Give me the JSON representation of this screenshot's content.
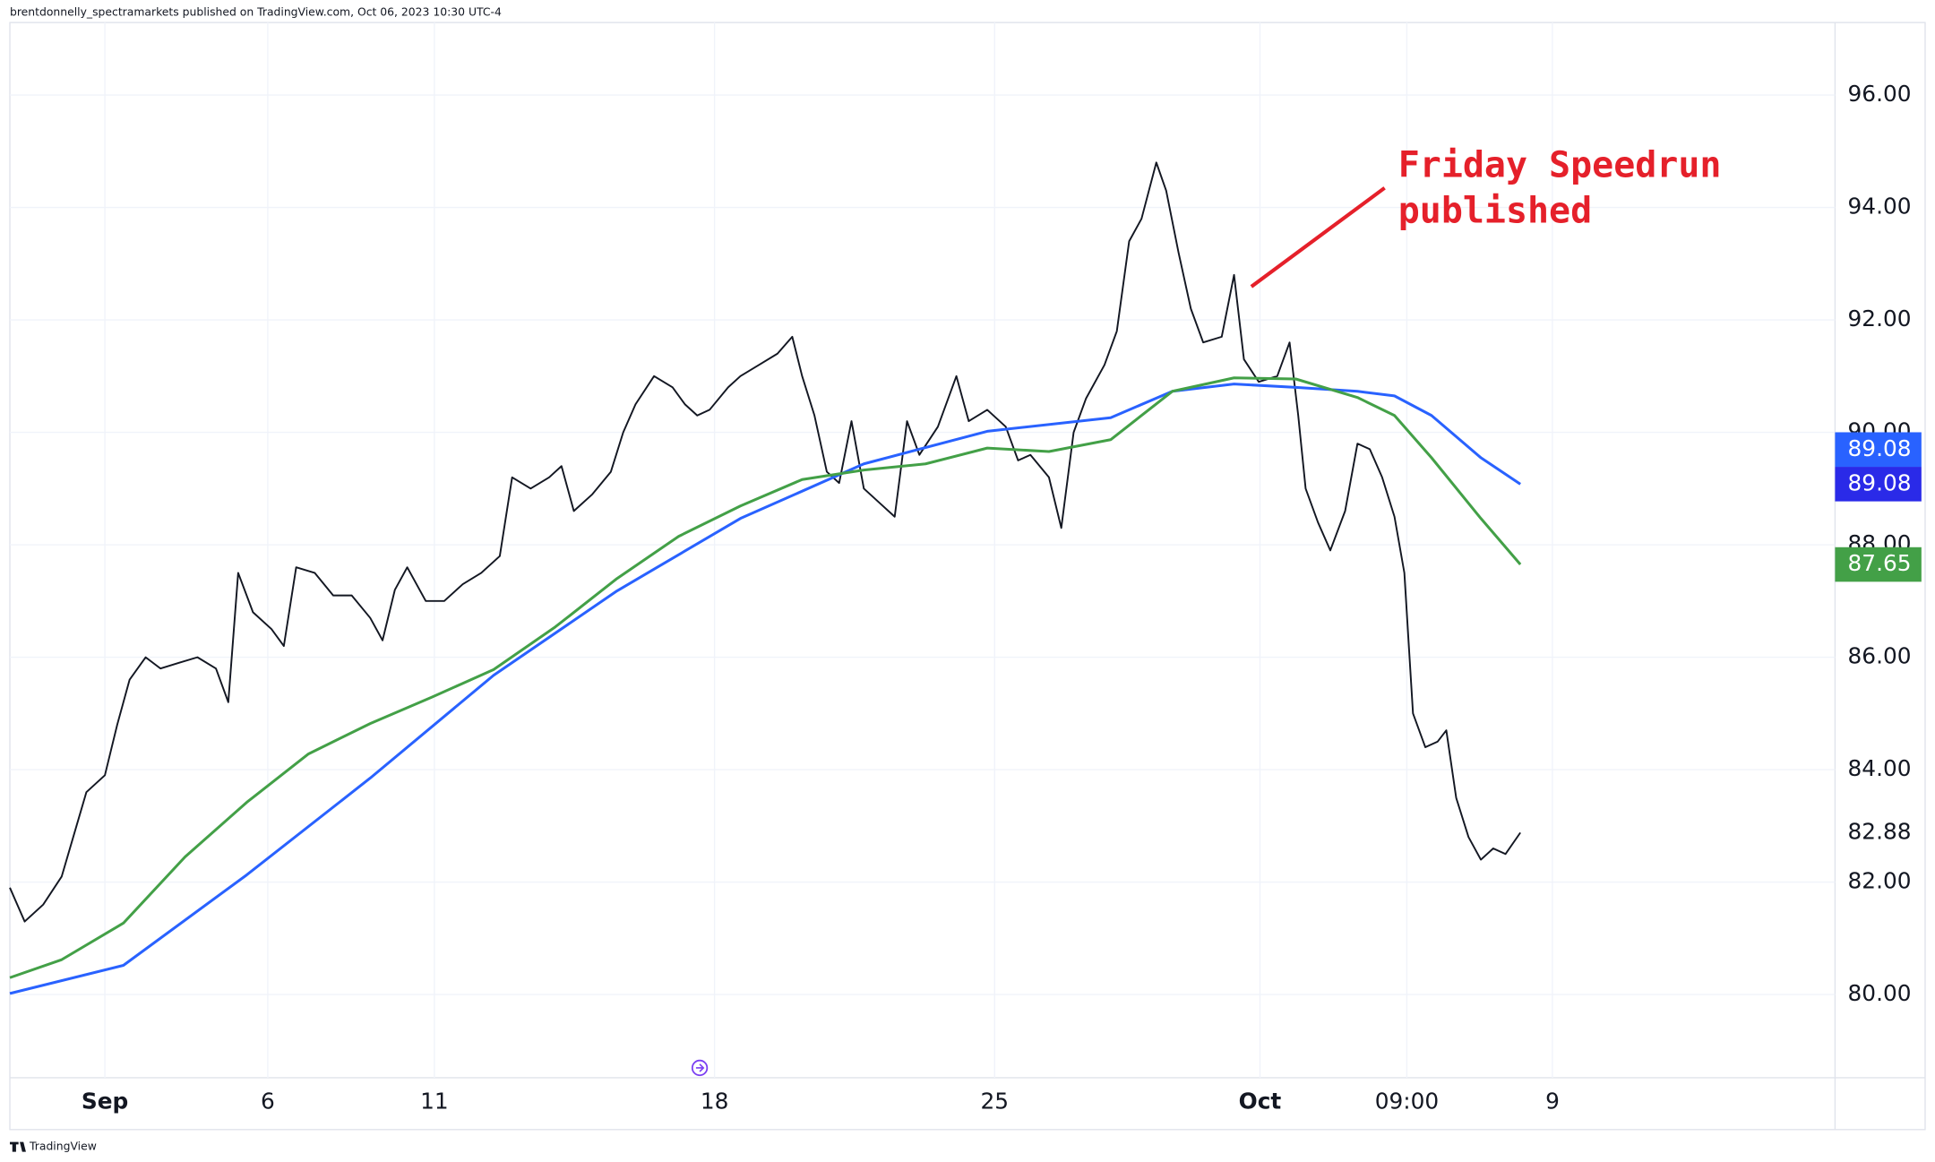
{
  "header": "brentdonnelly_spectramarkets published on TradingView.com, Oct 06, 2023 10:30 UTC-4",
  "footer": "TradingView",
  "chart_data": {
    "type": "line",
    "annotation": [
      "Friday Speedrun",
      "published"
    ],
    "annotation_color": "#e5202a",
    "grid": true,
    "xlim": [
      0,
      738.5
    ],
    "xticks": [
      {
        "value": 38.5,
        "label": "Sep"
      },
      {
        "value": 104.5,
        "label": "6"
      },
      {
        "value": 172,
        "label": "11"
      },
      {
        "value": 285.5,
        "label": "18"
      },
      {
        "value": 399,
        "label": "25"
      },
      {
        "value": 506.5,
        "label": "Oct"
      },
      {
        "value": 566,
        "label": "09:00"
      },
      {
        "value": 625,
        "label": "9"
      }
    ],
    "ylim": [
      78.52,
      97.29
    ],
    "yticks": [
      {
        "value": 80,
        "label": "80.00"
      },
      {
        "value": 82,
        "label": "82.00"
      },
      {
        "value": 84,
        "label": "84.00"
      },
      {
        "value": 86,
        "label": "86.00"
      },
      {
        "value": 88,
        "label": "88.00"
      },
      {
        "value": 90,
        "label": "90.00"
      },
      {
        "value": 92,
        "label": "92.00"
      },
      {
        "value": 94,
        "label": "94.00"
      },
      {
        "value": 96,
        "label": "96.00"
      }
    ],
    "series": [
      {
        "color": "#131722",
        "x": [
          0,
          6,
          13.5,
          21,
          27,
          31,
          38.5,
          43.5,
          48.5,
          55,
          61,
          68.5,
          76,
          83.5,
          88.5,
          92.5,
          98.5,
          106,
          111,
          116,
          123.5,
          131,
          138.5,
          146,
          151,
          156,
          161,
          168.5,
          176,
          183.5,
          191,
          198.5,
          203.5,
          211,
          218.5,
          223.5,
          228.5,
          236,
          243.5,
          248.5,
          253.5,
          261,
          268.5,
          273.5,
          278.5,
          283.5,
          291,
          296,
          303.5,
          311,
          317,
          321,
          326,
          331,
          336,
          341,
          346,
          353.5,
          358.5,
          363.5,
          368.5,
          376,
          383.5,
          388.5,
          396,
          403.5,
          408.5,
          413.5,
          421,
          426,
          431,
          436,
          443.5,
          448.5,
          453.5,
          458.5,
          464.5,
          468.5,
          473.5,
          478.5,
          483.5,
          491,
          496,
          500,
          506,
          513.5,
          518.5,
          522,
          525,
          530,
          535,
          541,
          546,
          551,
          556,
          561,
          565,
          568.5,
          573.5,
          578.5,
          582,
          586,
          591,
          596,
          601,
          606,
          612
        ],
        "values": [
          81.9,
          81.3,
          81.6,
          82.1,
          83.0,
          83.6,
          83.9,
          84.8,
          85.6,
          86.0,
          85.8,
          85.9,
          86.0,
          85.8,
          85.2,
          87.5,
          86.8,
          86.5,
          86.2,
          87.6,
          87.5,
          87.1,
          87.1,
          86.7,
          86.3,
          87.2,
          87.6,
          87.0,
          87.0,
          87.3,
          87.5,
          87.8,
          89.2,
          89.0,
          89.2,
          89.4,
          88.6,
          88.9,
          89.3,
          90.0,
          90.5,
          91.0,
          90.8,
          90.5,
          90.3,
          90.4,
          90.8,
          91.0,
          91.2,
          91.4,
          91.7,
          91.0,
          90.3,
          89.3,
          89.1,
          90.2,
          89.0,
          88.7,
          88.5,
          90.2,
          89.6,
          90.1,
          91.0,
          90.2,
          90.4,
          90.1,
          89.5,
          89.6,
          89.2,
          88.3,
          90.0,
          90.6,
          91.2,
          91.8,
          93.4,
          93.8,
          94.8,
          94.3,
          93.2,
          92.2,
          91.6,
          91.7,
          92.8,
          91.3,
          90.9,
          91.0,
          91.6,
          90.3,
          89.0,
          88.4,
          87.9,
          88.6,
          89.8,
          89.7,
          89.2,
          88.5,
          87.5,
          85.0,
          84.4,
          84.5,
          84.7,
          83.5,
          82.8,
          82.4,
          82.6,
          82.5,
          82.88
        ]
      },
      {
        "color": "#2962ff",
        "x": [
          0,
          46,
          96,
          146,
          196,
          246,
          296,
          346,
          396,
          446,
          471,
          496,
          521,
          546,
          561,
          576,
          596,
          612
        ],
        "values": [
          80.02,
          80.52,
          82.13,
          83.85,
          85.68,
          87.18,
          88.47,
          89.44,
          90.02,
          90.26,
          90.73,
          90.86,
          90.8,
          90.73,
          90.65,
          90.3,
          89.55,
          89.08
        ]
      },
      {
        "color": "#43a047",
        "x": [
          0,
          21,
          46,
          71,
          96,
          121,
          146,
          171,
          196,
          221,
          246,
          271,
          296,
          321,
          346,
          371,
          396,
          421,
          446,
          471,
          496,
          521,
          546,
          561,
          576,
          596,
          612
        ],
        "values": [
          80.3,
          80.62,
          81.27,
          82.45,
          83.42,
          84.28,
          84.82,
          85.29,
          85.78,
          86.54,
          87.4,
          88.15,
          88.69,
          89.16,
          89.33,
          89.44,
          89.72,
          89.66,
          89.87,
          90.73,
          90.97,
          90.95,
          90.62,
          90.3,
          89.55,
          88.47,
          87.65
        ]
      }
    ]
  }
}
